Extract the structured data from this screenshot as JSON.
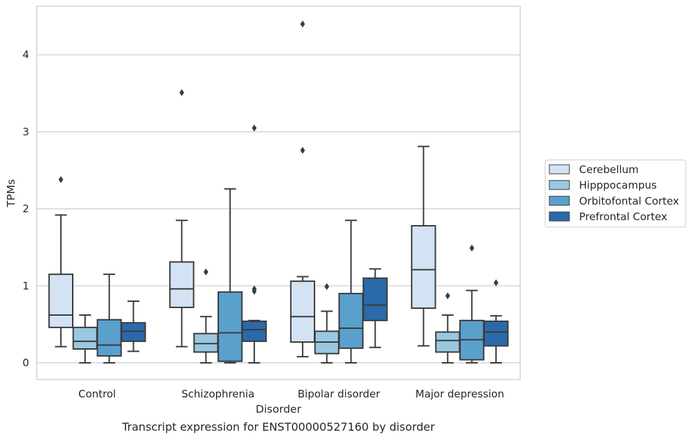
{
  "caption": "Transcript expression for ENST00000527160 by disorder",
  "chart_data": {
    "type": "box",
    "xlabel": "Disorder",
    "ylabel": "TPMs",
    "ylim": [
      -0.2,
      4.6
    ],
    "y_ticks": [
      0,
      1,
      2,
      3,
      4
    ],
    "categories": [
      "Control",
      "Schizophrenia",
      "Bipolar disorder",
      "Major depression"
    ],
    "grid": "horizontal",
    "legend_position": "right",
    "series": [
      {
        "name": "Cerebellum",
        "color": "#d3e3f3",
        "boxes": [
          {
            "whislo": 0.21,
            "q1": 0.46,
            "med": 0.62,
            "q3": 1.15,
            "whishi": 1.92,
            "fliers": [
              2.38
            ]
          },
          {
            "whislo": 0.21,
            "q1": 0.72,
            "med": 0.96,
            "q3": 1.31,
            "whishi": 1.85,
            "fliers": [
              3.51
            ]
          },
          {
            "whislo": 0.08,
            "q1": 0.27,
            "med": 0.6,
            "q3": 1.06,
            "whishi": 1.12,
            "fliers": [
              2.76,
              4.4
            ]
          },
          {
            "whislo": 0.22,
            "q1": 0.71,
            "med": 1.21,
            "q3": 1.78,
            "whishi": 2.81,
            "fliers": []
          }
        ]
      },
      {
        "name": "Hipppocampus",
        "color": "#9ac8e0",
        "boxes": [
          {
            "whislo": 0.0,
            "q1": 0.18,
            "med": 0.28,
            "q3": 0.46,
            "whishi": 0.62,
            "fliers": []
          },
          {
            "whislo": 0.0,
            "q1": 0.14,
            "med": 0.25,
            "q3": 0.38,
            "whishi": 0.6,
            "fliers": [
              1.18
            ]
          },
          {
            "whislo": 0.0,
            "q1": 0.12,
            "med": 0.27,
            "q3": 0.41,
            "whishi": 0.67,
            "fliers": [
              0.99
            ]
          },
          {
            "whislo": 0.0,
            "q1": 0.14,
            "med": 0.29,
            "q3": 0.4,
            "whishi": 0.62,
            "fliers": [
              0.87
            ]
          }
        ]
      },
      {
        "name": "Orbitofontal Cortex",
        "color": "#5aa0cd",
        "boxes": [
          {
            "whislo": 0.0,
            "q1": 0.09,
            "med": 0.23,
            "q3": 0.56,
            "whishi": 1.15,
            "fliers": []
          },
          {
            "whislo": 0.0,
            "q1": 0.02,
            "med": 0.39,
            "q3": 0.92,
            "whishi": 2.26,
            "fliers": []
          },
          {
            "whislo": 0.0,
            "q1": 0.19,
            "med": 0.45,
            "q3": 0.9,
            "whishi": 1.85,
            "fliers": []
          },
          {
            "whislo": 0.0,
            "q1": 0.04,
            "med": 0.3,
            "q3": 0.55,
            "whishi": 0.94,
            "fliers": [
              1.49
            ]
          }
        ]
      },
      {
        "name": "Prefrontal Cortex",
        "color": "#2a6aab",
        "boxes": [
          {
            "whislo": 0.15,
            "q1": 0.28,
            "med": 0.41,
            "q3": 0.52,
            "whishi": 0.8,
            "fliers": []
          },
          {
            "whislo": 0.0,
            "q1": 0.28,
            "med": 0.43,
            "q3": 0.54,
            "whishi": 0.55,
            "fliers": [
              0.93,
              0.96,
              3.05
            ]
          },
          {
            "whislo": 0.2,
            "q1": 0.55,
            "med": 0.75,
            "q3": 1.1,
            "whishi": 1.22,
            "fliers": []
          },
          {
            "whislo": 0.0,
            "q1": 0.22,
            "med": 0.4,
            "q3": 0.54,
            "whishi": 0.61,
            "fliers": [
              1.04
            ]
          }
        ]
      }
    ]
  }
}
